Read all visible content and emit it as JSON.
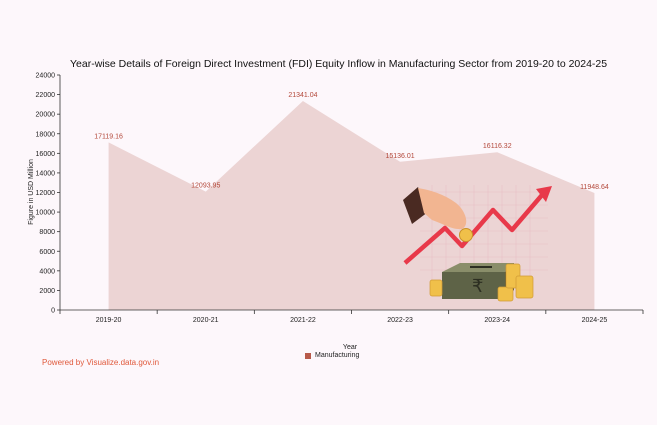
{
  "chart_data": {
    "type": "area",
    "title": "Year-wise Details of Foreign Direct Investment (FDI) Equity Inflow in Manufacturing Sector from 2019-20 to 2024-25",
    "xlabel": "Year",
    "ylabel": "Figure in USD Million",
    "categories": [
      "2019-20",
      "2020-21",
      "2021-22",
      "2022-23",
      "2023-24",
      "2024-25"
    ],
    "series": [
      {
        "name": "Manufacturing",
        "values": [
          17119.16,
          12093.95,
          21341.04,
          15136.01,
          16116.32,
          11948.64
        ]
      }
    ],
    "data_labels": [
      "17119.16",
      "12093.95",
      "21341.04",
      "15136.01",
      "16116.32",
      "11948.64"
    ],
    "y_ticks": [
      "0",
      "2000",
      "4000",
      "6000",
      "8000",
      "10000",
      "12000",
      "14000",
      "16000",
      "18000",
      "20000",
      "22000",
      "24000"
    ],
    "ylim": [
      0,
      24000
    ],
    "grid": false,
    "legend_position": "bottom-center"
  },
  "colors": {
    "area_fill": "#ecd4d4",
    "label_color": "#b3483a",
    "legend_swatch": "#b85a4a",
    "powered_text": "#e0593b",
    "background": "#fdf7fb"
  },
  "powered_by": "Powered by Visualize.data.gov.in",
  "illustration": {
    "icon": "investment-rupee-growth-icon",
    "currency_symbol": "₹"
  }
}
